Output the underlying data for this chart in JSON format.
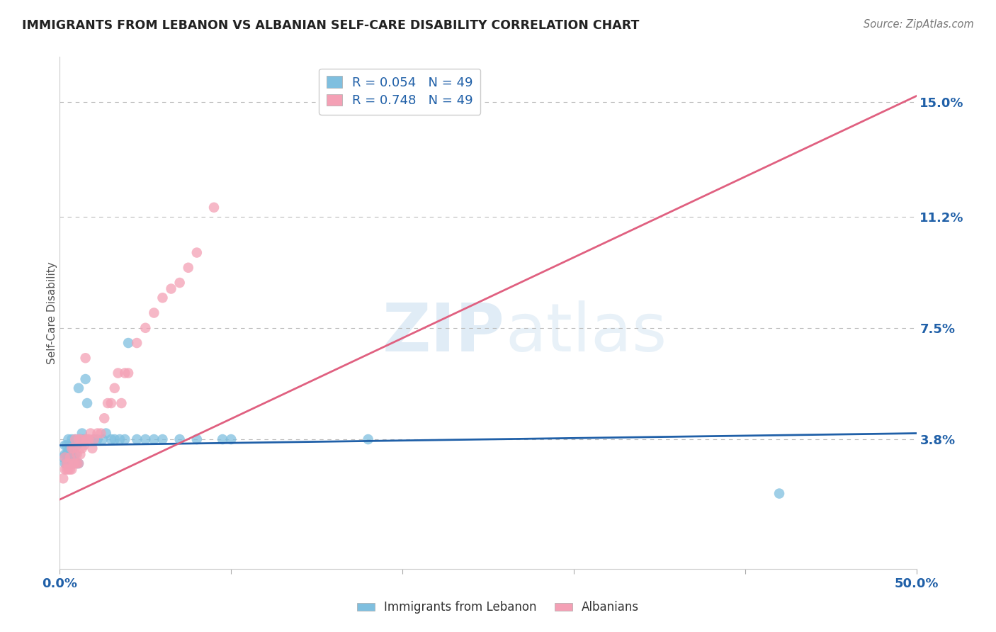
{
  "title": "IMMIGRANTS FROM LEBANON VS ALBANIAN SELF-CARE DISABILITY CORRELATION CHART",
  "source": "Source: ZipAtlas.com",
  "ylabel": "Self-Care Disability",
  "xlim": [
    0.0,
    0.5
  ],
  "ylim": [
    -0.005,
    0.165
  ],
  "ytick_positions": [
    0.038,
    0.075,
    0.112,
    0.15
  ],
  "ytick_labels": [
    "3.8%",
    "7.5%",
    "11.2%",
    "15.0%"
  ],
  "blue_color": "#7fbfdf",
  "pink_color": "#f4a0b5",
  "blue_line_color": "#2060a8",
  "pink_line_color": "#e06080",
  "R_blue": 0.054,
  "R_pink": 0.748,
  "N_blue": 49,
  "N_pink": 49,
  "legend_label_blue": "Immigrants from Lebanon",
  "legend_label_pink": "Albanians",
  "watermark_zip": "ZIP",
  "watermark_atlas": "atlas",
  "background_color": "#ffffff",
  "grid_color": "#bbbbbb",
  "blue_x": [
    0.002,
    0.003,
    0.003,
    0.003,
    0.004,
    0.004,
    0.004,
    0.005,
    0.005,
    0.005,
    0.005,
    0.006,
    0.006,
    0.006,
    0.007,
    0.007,
    0.007,
    0.008,
    0.008,
    0.009,
    0.009,
    0.01,
    0.01,
    0.011,
    0.011,
    0.012,
    0.013,
    0.014,
    0.015,
    0.016,
    0.02,
    0.022,
    0.025,
    0.027,
    0.03,
    0.032,
    0.035,
    0.038,
    0.04,
    0.045,
    0.05,
    0.055,
    0.06,
    0.07,
    0.08,
    0.095,
    0.1,
    0.18,
    0.42
  ],
  "blue_y": [
    0.032,
    0.03,
    0.033,
    0.036,
    0.03,
    0.033,
    0.036,
    0.03,
    0.032,
    0.034,
    0.038,
    0.03,
    0.033,
    0.036,
    0.03,
    0.033,
    0.038,
    0.03,
    0.032,
    0.033,
    0.038,
    0.03,
    0.036,
    0.03,
    0.055,
    0.038,
    0.04,
    0.038,
    0.058,
    0.05,
    0.038,
    0.038,
    0.038,
    0.04,
    0.038,
    0.038,
    0.038,
    0.038,
    0.07,
    0.038,
    0.038,
    0.038,
    0.038,
    0.038,
    0.038,
    0.038,
    0.038,
    0.038,
    0.02
  ],
  "pink_x": [
    0.002,
    0.003,
    0.003,
    0.004,
    0.004,
    0.005,
    0.005,
    0.006,
    0.006,
    0.007,
    0.007,
    0.008,
    0.008,
    0.009,
    0.009,
    0.01,
    0.01,
    0.011,
    0.011,
    0.012,
    0.012,
    0.013,
    0.014,
    0.015,
    0.015,
    0.016,
    0.017,
    0.018,
    0.019,
    0.02,
    0.022,
    0.024,
    0.026,
    0.028,
    0.03,
    0.032,
    0.034,
    0.036,
    0.038,
    0.04,
    0.045,
    0.05,
    0.055,
    0.06,
    0.065,
    0.07,
    0.075,
    0.08,
    0.09
  ],
  "pink_y": [
    0.025,
    0.028,
    0.032,
    0.028,
    0.03,
    0.028,
    0.03,
    0.028,
    0.032,
    0.028,
    0.035,
    0.03,
    0.035,
    0.03,
    0.038,
    0.03,
    0.033,
    0.03,
    0.038,
    0.033,
    0.038,
    0.035,
    0.036,
    0.038,
    0.065,
    0.038,
    0.038,
    0.04,
    0.035,
    0.038,
    0.04,
    0.04,
    0.045,
    0.05,
    0.05,
    0.055,
    0.06,
    0.05,
    0.06,
    0.06,
    0.07,
    0.075,
    0.08,
    0.085,
    0.088,
    0.09,
    0.095,
    0.1,
    0.115
  ],
  "pink_line_x0": 0.0,
  "pink_line_y0": 0.018,
  "pink_line_x1": 0.5,
  "pink_line_y1": 0.152,
  "blue_line_x0": 0.0,
  "blue_line_y0": 0.036,
  "blue_line_x1": 0.5,
  "blue_line_y1": 0.04
}
